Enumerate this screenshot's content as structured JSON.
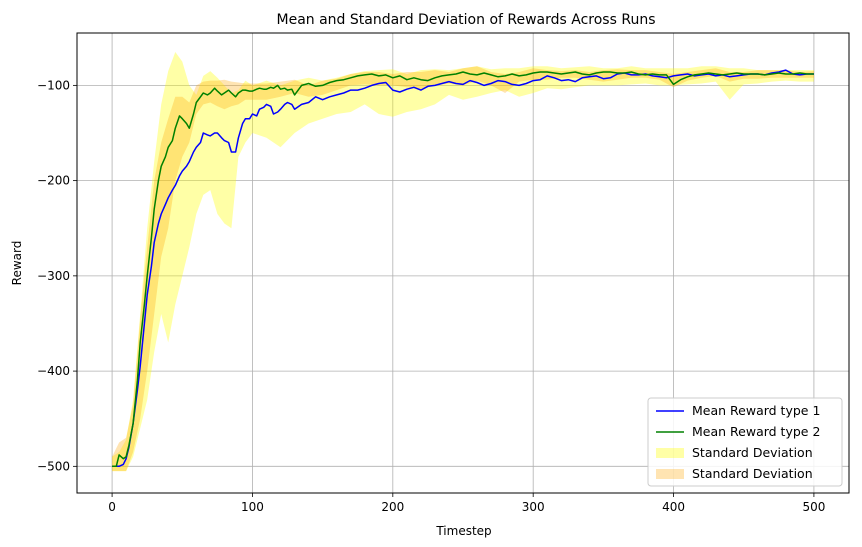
{
  "chart_data": {
    "type": "line",
    "title": "Mean and Standard Deviation of Rewards Across Runs",
    "xlabel": "Timestep",
    "ylabel": "Reward",
    "xlim": [
      -25,
      525
    ],
    "ylim": [
      -528,
      -45
    ],
    "xticks": [
      0,
      100,
      200,
      300,
      400,
      500
    ],
    "yticks": [
      -500,
      -400,
      -300,
      -200,
      -100
    ],
    "xtick_labels": [
      "0",
      "100",
      "200",
      "300",
      "400",
      "500"
    ],
    "ytick_labels": [
      "−500",
      "−400",
      "−300",
      "−200",
      "−100"
    ],
    "grid": true,
    "legend_position": "lower-right",
    "series": [
      {
        "name": "Mean Reward type 1",
        "color": "#0000ff",
        "x": [
          0,
          3,
          5,
          8,
          10,
          12,
          15,
          18,
          20,
          23,
          25,
          28,
          30,
          33,
          35,
          38,
          40,
          43,
          45,
          48,
          50,
          53,
          55,
          58,
          60,
          63,
          65,
          68,
          70,
          73,
          75,
          78,
          80,
          83,
          85,
          88,
          90,
          93,
          95,
          98,
          100,
          103,
          105,
          108,
          110,
          113,
          115,
          118,
          120,
          123,
          125,
          128,
          130,
          135,
          140,
          145,
          150,
          155,
          160,
          165,
          170,
          175,
          180,
          185,
          190,
          195,
          200,
          205,
          210,
          215,
          220,
          225,
          230,
          235,
          240,
          245,
          250,
          255,
          260,
          265,
          270,
          275,
          280,
          285,
          290,
          295,
          300,
          305,
          310,
          315,
          320,
          325,
          330,
          335,
          340,
          345,
          350,
          355,
          360,
          365,
          370,
          375,
          380,
          385,
          390,
          395,
          400,
          405,
          410,
          415,
          420,
          425,
          430,
          435,
          440,
          445,
          450,
          455,
          460,
          465,
          470,
          475,
          480,
          485,
          490,
          495,
          500
        ],
        "y": [
          -500,
          -500,
          -500,
          -498,
          -492,
          -480,
          -455,
          -420,
          -395,
          -350,
          -320,
          -290,
          -265,
          -245,
          -235,
          -225,
          -218,
          -210,
          -205,
          -195,
          -190,
          -185,
          -180,
          -170,
          -165,
          -160,
          -150,
          -152,
          -153,
          -150,
          -150,
          -155,
          -158,
          -160,
          -170,
          -170,
          -155,
          -140,
          -135,
          -135,
          -130,
          -132,
          -125,
          -123,
          -120,
          -122,
          -130,
          -128,
          -125,
          -120,
          -118,
          -120,
          -125,
          -120,
          -118,
          -112,
          -115,
          -112,
          -110,
          -108,
          -105,
          -105,
          -103,
          -100,
          -98,
          -97,
          -105,
          -107,
          -104,
          -102,
          -105,
          -101,
          -100,
          -98,
          -96,
          -98,
          -99,
          -95,
          -97,
          -100,
          -98,
          -95,
          -96,
          -99,
          -100,
          -98,
          -95,
          -94,
          -90,
          -92,
          -95,
          -94,
          -96,
          -92,
          -91,
          -90,
          -93,
          -92,
          -88,
          -87,
          -89,
          -89,
          -88,
          -90,
          -91,
          -92,
          -90,
          -89,
          -88,
          -90,
          -89,
          -88,
          -90,
          -89,
          -91,
          -90,
          -89,
          -88,
          -88,
          -89,
          -87,
          -86,
          -84,
          -88,
          -89,
          -88,
          -88
        ]
      },
      {
        "name": "Mean Reward type 2",
        "color": "#008000",
        "x": [
          0,
          3,
          5,
          8,
          10,
          12,
          15,
          18,
          20,
          23,
          25,
          28,
          30,
          33,
          35,
          38,
          40,
          43,
          45,
          48,
          50,
          53,
          55,
          58,
          60,
          63,
          65,
          68,
          70,
          73,
          75,
          78,
          80,
          83,
          85,
          88,
          90,
          93,
          95,
          98,
          100,
          103,
          105,
          108,
          110,
          113,
          115,
          118,
          120,
          123,
          125,
          128,
          130,
          135,
          140,
          145,
          150,
          155,
          160,
          165,
          170,
          175,
          180,
          185,
          190,
          195,
          200,
          205,
          210,
          215,
          220,
          225,
          230,
          235,
          240,
          245,
          250,
          255,
          260,
          265,
          270,
          275,
          280,
          285,
          290,
          295,
          300,
          305,
          310,
          315,
          320,
          325,
          330,
          335,
          340,
          345,
          350,
          355,
          360,
          365,
          370,
          375,
          380,
          385,
          390,
          395,
          400,
          405,
          410,
          415,
          420,
          425,
          430,
          435,
          440,
          445,
          450,
          455,
          460,
          465,
          470,
          475,
          480,
          485,
          490,
          495,
          500
        ],
        "y": [
          -500,
          -500,
          -488,
          -492,
          -490,
          -478,
          -455,
          -410,
          -370,
          -330,
          -300,
          -260,
          -230,
          -200,
          -185,
          -175,
          -165,
          -158,
          -145,
          -132,
          -135,
          -140,
          -145,
          -130,
          -118,
          -112,
          -108,
          -110,
          -108,
          -103,
          -106,
          -110,
          -108,
          -105,
          -108,
          -112,
          -108,
          -105,
          -105,
          -106,
          -106,
          -104,
          -103,
          -104,
          -104,
          -102,
          -103,
          -100,
          -104,
          -103,
          -105,
          -104,
          -110,
          -100,
          -98,
          -101,
          -100,
          -97,
          -95,
          -94,
          -92,
          -90,
          -89,
          -88,
          -90,
          -89,
          -92,
          -90,
          -94,
          -92,
          -94,
          -95,
          -92,
          -90,
          -89,
          -88,
          -86,
          -88,
          -89,
          -87,
          -89,
          -91,
          -90,
          -88,
          -90,
          -89,
          -87,
          -86,
          -86,
          -87,
          -88,
          -87,
          -86,
          -88,
          -89,
          -87,
          -86,
          -86,
          -87,
          -87,
          -86,
          -88,
          -89,
          -88,
          -89,
          -89,
          -99,
          -94,
          -91,
          -89,
          -88,
          -87,
          -88,
          -89,
          -88,
          -87,
          -88,
          -88,
          -88,
          -89,
          -88,
          -87,
          -88,
          -88,
          -87,
          -88,
          -88
        ]
      }
    ],
    "bands": [
      {
        "name": "Standard Deviation",
        "color": "#ffff00",
        "opacity": 0.35,
        "x": [
          0,
          5,
          10,
          15,
          20,
          25,
          30,
          35,
          40,
          45,
          50,
          55,
          60,
          65,
          70,
          75,
          80,
          85,
          90,
          95,
          100,
          110,
          120,
          130,
          140,
          150,
          160,
          170,
          180,
          190,
          200,
          210,
          220,
          230,
          240,
          250,
          260,
          270,
          280,
          290,
          300,
          310,
          320,
          330,
          340,
          350,
          360,
          370,
          380,
          390,
          400,
          410,
          420,
          430,
          440,
          450,
          460,
          470,
          480,
          490,
          500
        ],
        "upper": [
          -490,
          -485,
          -472,
          -430,
          -340,
          -250,
          -180,
          -120,
          -85,
          -65,
          -75,
          -100,
          -110,
          -90,
          -85,
          -92,
          -100,
          -108,
          -105,
          -95,
          -100,
          -95,
          -100,
          -95,
          -92,
          -95,
          -92,
          -88,
          -85,
          -84,
          -83,
          -88,
          -84,
          -83,
          -84,
          -82,
          -80,
          -83,
          -82,
          -82,
          -80,
          -80,
          -82,
          -81,
          -80,
          -82,
          -82,
          -80,
          -82,
          -82,
          -82,
          -82,
          -80,
          -80,
          -82,
          -82,
          -84,
          -84,
          -84,
          -84,
          -84
        ],
        "lower": [
          -505,
          -505,
          -505,
          -490,
          -460,
          -430,
          -380,
          -340,
          -370,
          -330,
          -300,
          -270,
          -235,
          -215,
          -210,
          -235,
          -245,
          -250,
          -175,
          -160,
          -150,
          -155,
          -165,
          -150,
          -140,
          -135,
          -130,
          -128,
          -120,
          -130,
          -133,
          -128,
          -125,
          -120,
          -110,
          -115,
          -112,
          -108,
          -105,
          -112,
          -108,
          -103,
          -104,
          -102,
          -100,
          -100,
          -100,
          -99,
          -98,
          -100,
          -100,
          -99,
          -98,
          -96,
          -115,
          -99,
          -98,
          -96,
          -95,
          -96,
          -96
        ]
      },
      {
        "name": "Standard Deviation",
        "color": "#ffa500",
        "opacity": 0.3,
        "x": [
          0,
          5,
          10,
          15,
          20,
          25,
          30,
          35,
          40,
          45,
          50,
          55,
          60,
          65,
          70,
          75,
          80,
          85,
          90,
          95,
          100,
          110,
          120,
          130,
          140,
          150,
          160,
          170,
          180,
          190,
          200,
          210,
          220,
          230,
          240,
          250,
          260,
          270,
          280,
          290,
          300,
          310,
          320,
          330,
          340,
          350,
          360,
          370,
          380,
          390,
          400,
          410,
          420,
          430,
          440,
          450,
          460,
          470,
          480,
          490,
          500
        ],
        "upper": [
          -490,
          -475,
          -470,
          -435,
          -345,
          -270,
          -200,
          -160,
          -135,
          -112,
          -112,
          -118,
          -100,
          -96,
          -95,
          -95,
          -94,
          -96,
          -97,
          -98,
          -98,
          -98,
          -96,
          -94,
          -100,
          -95,
          -93,
          -88,
          -86,
          -86,
          -88,
          -86,
          -86,
          -84,
          -86,
          -82,
          -80,
          -86,
          -88,
          -86,
          -82,
          -84,
          -85,
          -84,
          -86,
          -84,
          -83,
          -84,
          -84,
          -86,
          -88,
          -86,
          -84,
          -82,
          -86,
          -86,
          -84,
          -84,
          -84,
          -86,
          -85
        ],
        "lower": [
          -505,
          -505,
          -505,
          -485,
          -450,
          -400,
          -340,
          -280,
          -250,
          -200,
          -175,
          -160,
          -130,
          -120,
          -118,
          -122,
          -125,
          -122,
          -120,
          -115,
          -115,
          -115,
          -112,
          -108,
          -112,
          -110,
          -105,
          -100,
          -99,
          -100,
          -100,
          -102,
          -104,
          -100,
          -98,
          -100,
          -95,
          -100,
          -108,
          -96,
          -94,
          -94,
          -92,
          -92,
          -94,
          -96,
          -94,
          -92,
          -92,
          -94,
          -102,
          -95,
          -92,
          -90,
          -96,
          -93,
          -93,
          -92,
          -92,
          -92,
          -92
        ]
      }
    ],
    "legend": [
      {
        "label": "Mean Reward type 1",
        "kind": "line",
        "color": "#0000ff"
      },
      {
        "label": "Mean Reward type 2",
        "kind": "line",
        "color": "#008000"
      },
      {
        "label": "Standard Deviation",
        "kind": "patch",
        "color": "#ffff00",
        "opacity": 0.35
      },
      {
        "label": "Standard Deviation",
        "kind": "patch",
        "color": "#ffa500",
        "opacity": 0.3
      }
    ]
  }
}
